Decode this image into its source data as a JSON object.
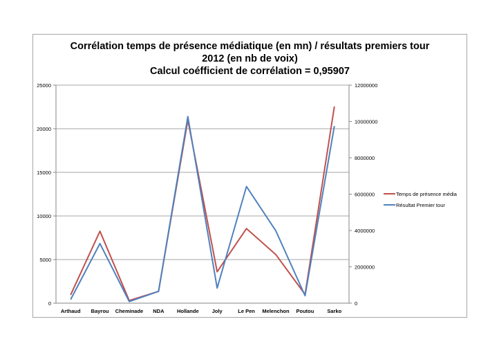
{
  "chart_data": {
    "type": "line",
    "title": [
      "Corrélation temps de présence médiatique (en mn) / résultats premiers tour",
      "2012 (en nb de voix)",
      "Calcul coéfficient de corrélation = 0,95907"
    ],
    "categories": [
      "Arthaud",
      "Bayrou",
      "Cheminade",
      "NDA",
      "Hollande",
      "Joly",
      "Le Pen",
      "Melenchon",
      "Poutou",
      "Sarko"
    ],
    "y_left": {
      "range": [
        0,
        25000
      ],
      "ticks": [
        "0",
        "5000",
        "10000",
        "15000",
        "20000",
        "25000"
      ]
    },
    "y_right": {
      "range": [
        0,
        12000000
      ],
      "ticks": [
        "0",
        "2000000",
        "4000000",
        "6000000",
        "8000000",
        "10000000",
        "12000000"
      ]
    },
    "grid": true,
    "legend": "right",
    "series": [
      {
        "name": "Temps de présence média",
        "axis": "left",
        "color": "#c0504d",
        "values": [
          950,
          8250,
          300,
          1350,
          21000,
          3600,
          8550,
          5580,
          1000,
          22550
        ]
      },
      {
        "name": "Résultat Premier tour",
        "axis": "right",
        "color": "#4f81bd",
        "values": [
          200000,
          3280000,
          90000,
          650000,
          10270000,
          830000,
          6420000,
          3990000,
          410000,
          9750000
        ]
      }
    ]
  }
}
